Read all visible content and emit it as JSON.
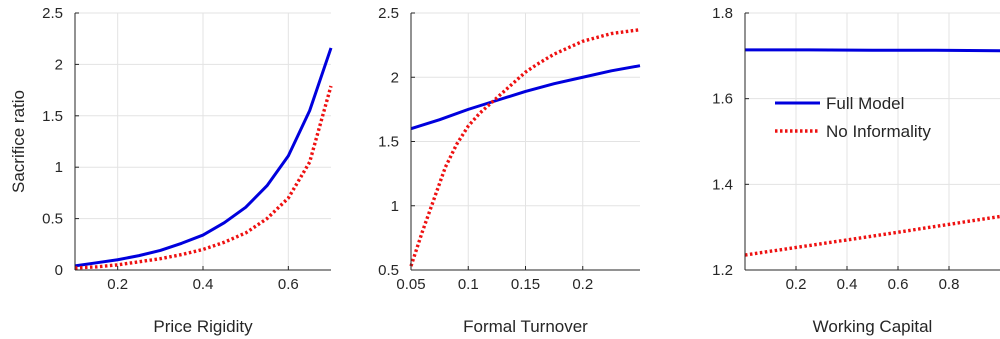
{
  "chart_data": [
    {
      "type": "line",
      "xlabel": "Price Rigidity",
      "ylabel": "Sacrifice ratio",
      "xlim": [
        0.1,
        0.7
      ],
      "ylim": [
        0,
        2.5
      ],
      "xticks": [
        "0.2",
        "0.4",
        "0.6"
      ],
      "yticks": [
        "0",
        "0.5",
        "1",
        "1.5",
        "2",
        "2.5"
      ],
      "grid": true,
      "series": [
        {
          "name": "Full Model",
          "style": "solid",
          "color": "#0000dd",
          "x": [
            0.1,
            0.15,
            0.2,
            0.25,
            0.3,
            0.35,
            0.4,
            0.45,
            0.5,
            0.55,
            0.6,
            0.65,
            0.7
          ],
          "y": [
            0.04,
            0.07,
            0.1,
            0.14,
            0.19,
            0.26,
            0.34,
            0.46,
            0.61,
            0.82,
            1.11,
            1.55,
            2.16
          ]
        },
        {
          "name": "No Informality",
          "style": "dotted",
          "color": "#ee1111",
          "x": [
            0.1,
            0.15,
            0.2,
            0.25,
            0.3,
            0.35,
            0.4,
            0.45,
            0.5,
            0.55,
            0.6,
            0.65,
            0.7
          ],
          "y": [
            0.02,
            0.03,
            0.05,
            0.08,
            0.11,
            0.15,
            0.2,
            0.27,
            0.36,
            0.5,
            0.7,
            1.05,
            1.79
          ]
        }
      ]
    },
    {
      "type": "line",
      "xlabel": "Formal Turnover",
      "ylabel": "",
      "xlim": [
        0.05,
        0.25
      ],
      "ylim": [
        0.5,
        2.5
      ],
      "xticks": [
        "0.05",
        "0.1",
        "0.15",
        "0.2"
      ],
      "yticks": [
        "0.5",
        "1",
        "1.5",
        "2",
        "2.5"
      ],
      "grid": true,
      "series": [
        {
          "name": "Full Model",
          "style": "solid",
          "color": "#0000dd",
          "x": [
            0.05,
            0.075,
            0.1,
            0.125,
            0.15,
            0.175,
            0.2,
            0.225,
            0.25
          ],
          "y": [
            1.6,
            1.67,
            1.75,
            1.82,
            1.89,
            1.95,
            2.0,
            2.05,
            2.09
          ]
        },
        {
          "name": "No Informality",
          "style": "dotted",
          "color": "#ee1111",
          "x": [
            0.05,
            0.06,
            0.07,
            0.08,
            0.09,
            0.1,
            0.11,
            0.12,
            0.13,
            0.14,
            0.15,
            0.16,
            0.175,
            0.2,
            0.225,
            0.25
          ],
          "y": [
            0.53,
            0.8,
            1.05,
            1.3,
            1.48,
            1.62,
            1.72,
            1.8,
            1.88,
            1.96,
            2.04,
            2.1,
            2.18,
            2.28,
            2.34,
            2.37
          ]
        }
      ]
    },
    {
      "type": "line",
      "xlabel": "Working Capital",
      "ylabel": "",
      "xlim": [
        0,
        1
      ],
      "ylim": [
        1.2,
        1.8
      ],
      "xticks": [
        "0.2",
        "0.4",
        "0.6",
        "0.8"
      ],
      "yticks": [
        "1.2",
        "1.4",
        "1.6",
        "1.8"
      ],
      "grid": true,
      "legend": "top-left",
      "series": [
        {
          "name": "Full Model",
          "style": "solid",
          "color": "#0000dd",
          "x": [
            0,
            0.25,
            0.5,
            0.75,
            1.0
          ],
          "y": [
            1.714,
            1.714,
            1.713,
            1.713,
            1.712
          ]
        },
        {
          "name": "No Informality",
          "style": "dotted",
          "color": "#ee1111",
          "x": [
            0,
            0.25,
            0.5,
            0.75,
            1.0
          ],
          "y": [
            1.235,
            1.257,
            1.279,
            1.302,
            1.325
          ]
        }
      ]
    }
  ]
}
